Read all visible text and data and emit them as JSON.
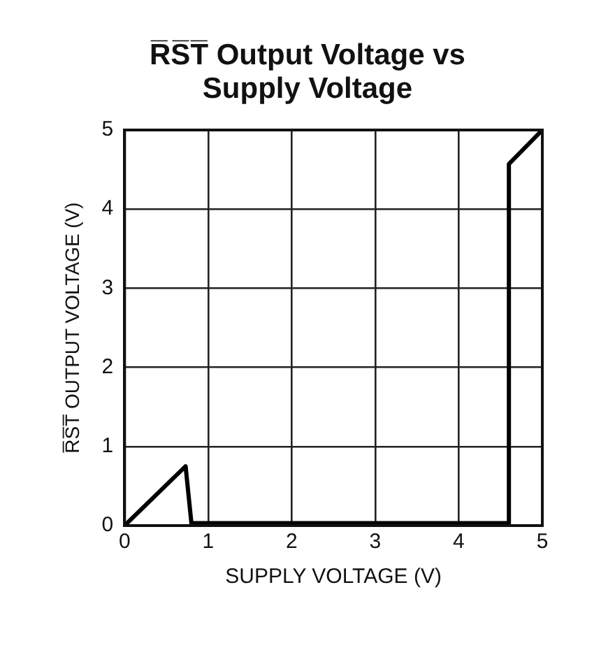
{
  "chart_data": {
    "type": "line",
    "title": "R̅S̅T̅ Output Voltage vs Supply Voltage",
    "xlabel": "SUPPLY VOLTAGE (V)",
    "ylabel": "R̅S̅T̅ OUTPUT VOLTAGE (V)",
    "x": [
      0,
      0.73,
      0.8,
      4.6,
      4.6,
      5
    ],
    "series": [
      {
        "color": "#000000",
        "values": [
          0,
          0.75,
          0.03,
          0.03,
          4.57,
          5
        ]
      }
    ],
    "xlim": [
      0,
      5
    ],
    "ylim": [
      0,
      5
    ],
    "xticks": [
      0,
      1,
      2,
      3,
      4,
      5
    ],
    "yticks": [
      0,
      1,
      2,
      3,
      4,
      5
    ],
    "grid": true,
    "legend": false,
    "marker": "none",
    "line_style": "solid"
  }
}
